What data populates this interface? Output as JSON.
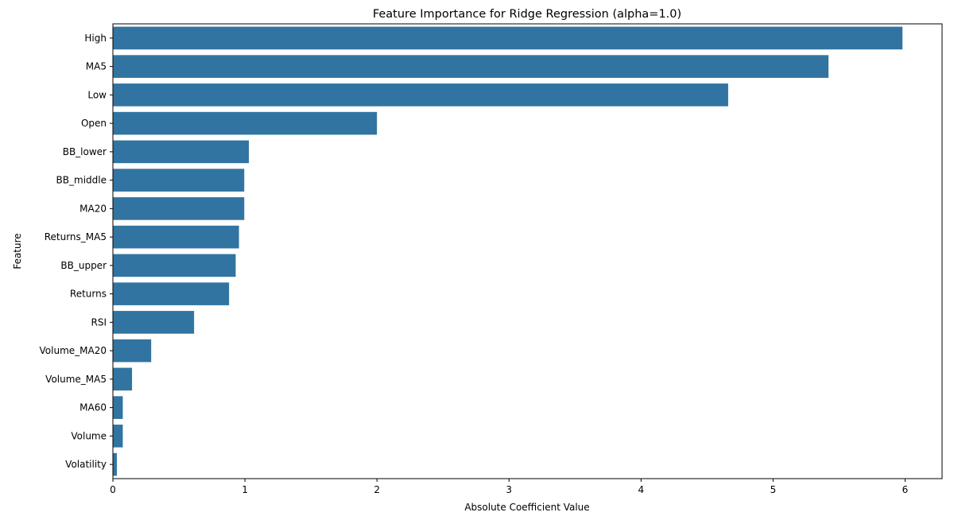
{
  "chart_data": {
    "type": "bar",
    "orientation": "horizontal",
    "title": "Feature Importance for Ridge Regression (alpha=1.0)",
    "xlabel": "Absolute Coefficient Value",
    "ylabel": "Feature",
    "xlim": [
      0,
      6.28
    ],
    "xticks": [
      0,
      1,
      2,
      3,
      4,
      5,
      6
    ],
    "bar_color": "#3274a1",
    "grid": false,
    "categories": [
      "High",
      "MA5",
      "Low",
      "Open",
      "BB_lower",
      "BB_middle",
      "MA20",
      "Returns_MA5",
      "BB_upper",
      "Returns",
      "RSI",
      "Volume_MA20",
      "Volume_MA5",
      "MA60",
      "Volume",
      "Volatility"
    ],
    "values": [
      5.98,
      5.42,
      4.66,
      2.0,
      1.03,
      0.995,
      0.995,
      0.955,
      0.93,
      0.88,
      0.615,
      0.29,
      0.145,
      0.075,
      0.075,
      0.03
    ]
  }
}
